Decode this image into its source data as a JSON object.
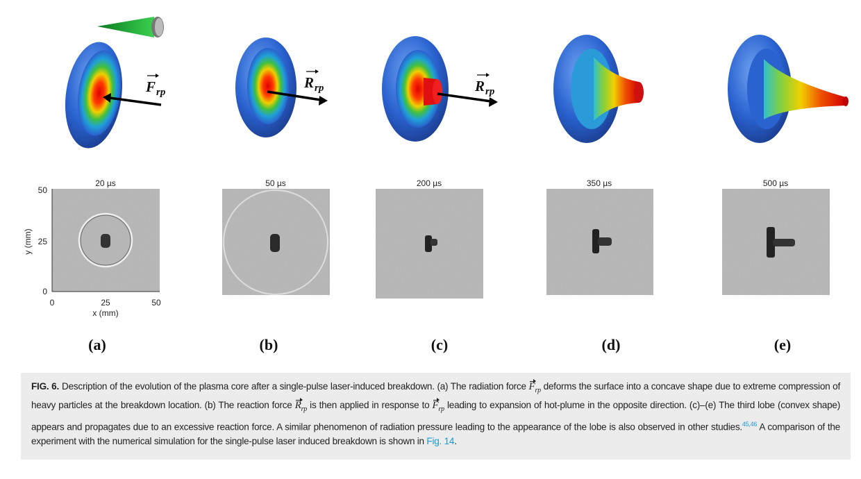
{
  "figure": {
    "force_labels": [
      {
        "symbol": "F",
        "subscript": "rp"
      },
      {
        "symbol": "R",
        "subscript": "rp"
      },
      {
        "symbol": "R",
        "subscript": "rp"
      }
    ],
    "panels": [
      {
        "time": "20 µs",
        "letter": "(a)"
      },
      {
        "time": "50 µs",
        "letter": "(b)"
      },
      {
        "time": "200 µs",
        "letter": "(c)"
      },
      {
        "time": "350 µs",
        "letter": "(d)"
      },
      {
        "time": "500 µs",
        "letter": "(e)"
      }
    ],
    "axes": {
      "y_label": "y (mm)",
      "x_label": "x (mm)",
      "y_ticks": [
        "50",
        "25",
        "0"
      ],
      "x_ticks": [
        "0",
        "25",
        "50"
      ]
    }
  },
  "caption": {
    "label": "FIG. 6.",
    "segments": [
      "Description of the evolution of the plasma core after a single-pulse laser-induced breakdown. (a) The radiation force ",
      " deforms the surface into a concave shape due to extreme compression of heavy particles at the breakdown location. (b) The reaction force ",
      " is then applied in response to ",
      " leading to expansion of hot-plume in the opposite direction. (c)–(e) The third lobe (convex shape) appears and propagates due to an excessive reaction force. A similar phenomenon of radiation pressure leading to the appearance of the lobe is also observed in other studies.",
      " A comparison of the experiment with the numerical simulation for the single-pulse laser induced breakdown is shown in ",
      "."
    ],
    "math": [
      {
        "symbol": "F",
        "subscript": "rp"
      },
      {
        "symbol": "R",
        "subscript": "rp"
      },
      {
        "symbol": "F",
        "subscript": "rp"
      }
    ],
    "citation": "45,46",
    "link": "Fig. 14"
  }
}
